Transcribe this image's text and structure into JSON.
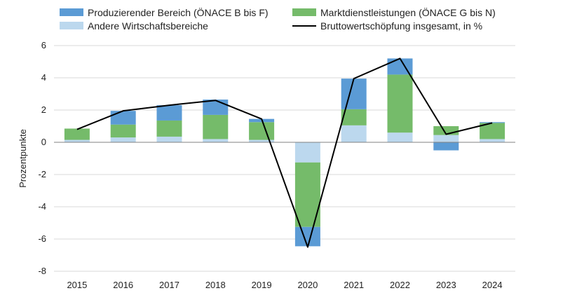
{
  "chart_data": {
    "type": "bar",
    "stacked": true,
    "title": "",
    "xlabel": "",
    "ylabel": "Prozentpunkte",
    "ylim": [
      -8,
      6
    ],
    "yticks": [
      -8,
      -6,
      -4,
      -2,
      0,
      2,
      4,
      6
    ],
    "grid": "horizontal",
    "legend_position": "top",
    "categories": [
      "2015",
      "2016",
      "2017",
      "2018",
      "2019",
      "2020",
      "2021",
      "2022",
      "2023",
      "2024"
    ],
    "series": [
      {
        "name": "Andere Wirtschaftsbereiche",
        "type": "bar",
        "color": "#bcd8ee",
        "values": [
          0.15,
          0.3,
          0.35,
          0.2,
          0.15,
          -1.25,
          1.05,
          0.6,
          0.45,
          0.2
        ]
      },
      {
        "name": "Marktdienstleistungen (ÖNACE G bis N)",
        "type": "bar",
        "color": "#75bb6a",
        "values": [
          0.7,
          0.8,
          1.0,
          1.5,
          1.1,
          -4.0,
          1.0,
          3.6,
          0.55,
          1.0
        ]
      },
      {
        "name": "Produzierender Bereich (ÖNACE B bis F)",
        "type": "bar",
        "color": "#5b9bd5",
        "values": [
          0.0,
          0.85,
          0.95,
          0.95,
          0.2,
          -1.2,
          1.9,
          1.0,
          -0.5,
          0.05
        ]
      },
      {
        "name": "Bruttowertschöpfung insgesamt, in %",
        "type": "line",
        "color": "#000000",
        "values": [
          0.8,
          1.95,
          2.3,
          2.6,
          1.45,
          -6.5,
          3.95,
          5.2,
          0.5,
          1.2
        ]
      }
    ]
  }
}
